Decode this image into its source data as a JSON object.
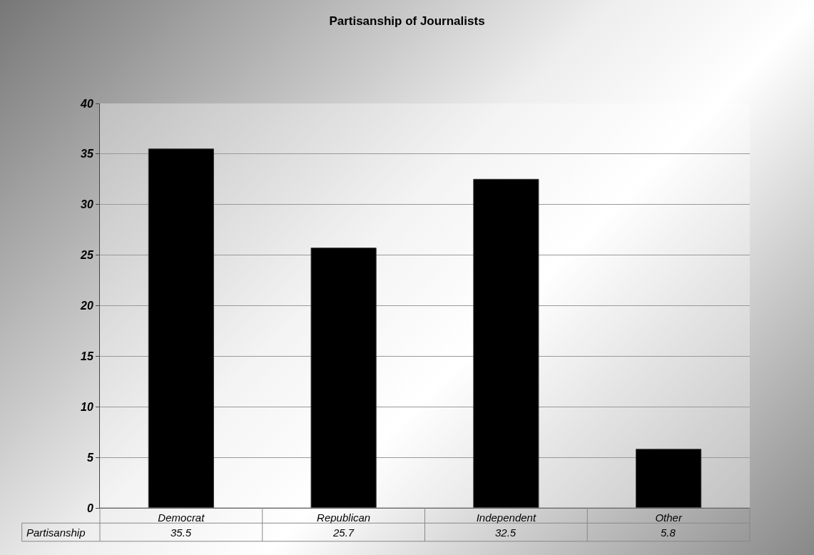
{
  "chart_data": {
    "type": "bar",
    "title": "Partisanship of Journalists",
    "categories": [
      "Democrat",
      "Republican",
      "Independent",
      "Other"
    ],
    "series": [
      {
        "name": "Partisanship",
        "color": "#000000",
        "values": [
          35.5,
          25.7,
          32.5,
          5.8
        ]
      }
    ],
    "ylim": [
      0,
      40
    ],
    "yticks": [
      0,
      5,
      10,
      15,
      20,
      25,
      30,
      35,
      40
    ],
    "grid": "y",
    "legend": false,
    "data_labels": true
  }
}
